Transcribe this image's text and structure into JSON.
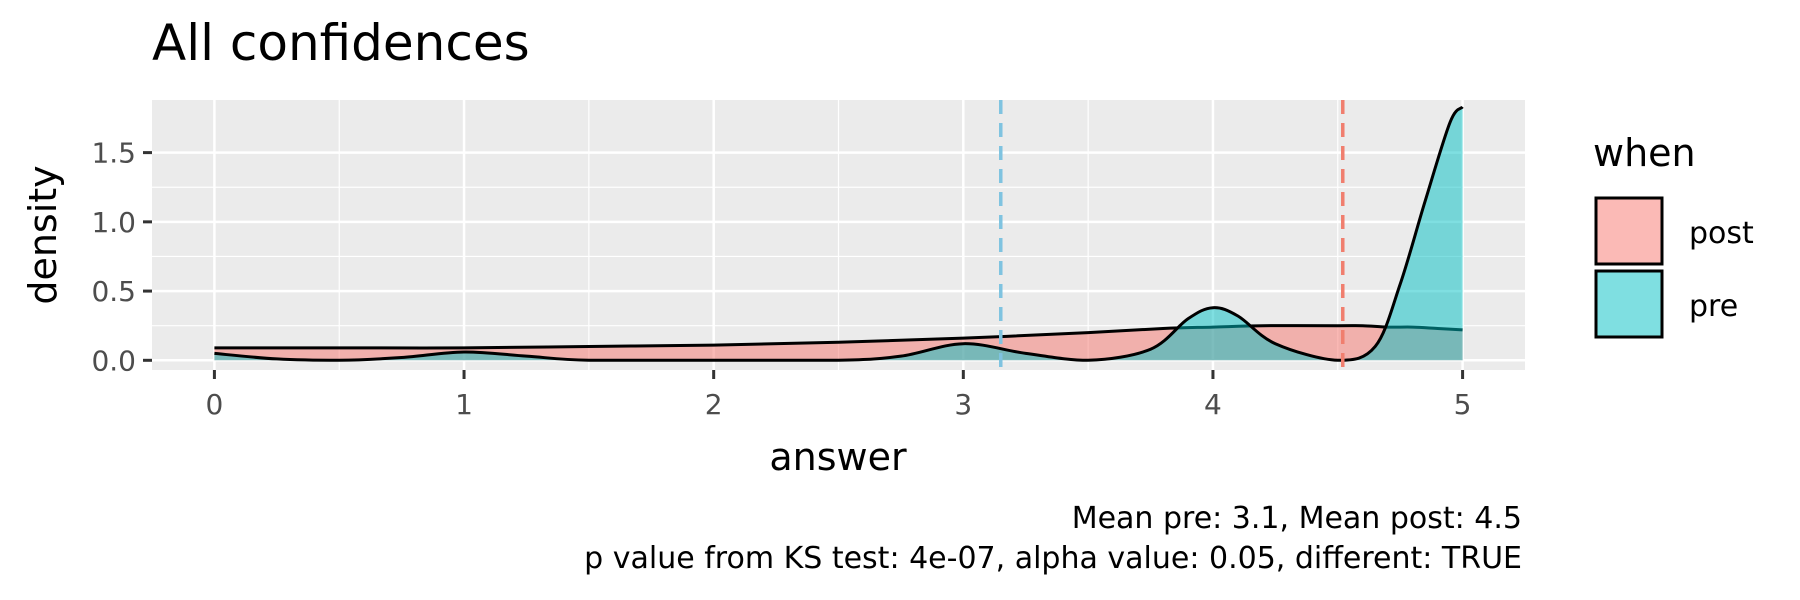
{
  "chart_data": {
    "type": "area",
    "title": "All confidences",
    "xlabel": "answer",
    "ylabel": "density",
    "xlim": [
      -0.25,
      5.25
    ],
    "ylim": [
      -0.07,
      1.88
    ],
    "x_ticks": [
      0,
      1,
      2,
      3,
      4,
      5
    ],
    "y_ticks": [
      0.0,
      0.5,
      1.0,
      1.5
    ],
    "x_tick_labels": [
      "0",
      "1",
      "2",
      "3",
      "4",
      "5"
    ],
    "y_tick_labels": [
      "0.0",
      "0.5",
      "1.0",
      "1.5"
    ],
    "legend_title": "when",
    "legend_position": "right",
    "series": [
      {
        "name": "post",
        "color": "#F8766D",
        "x": [
          0,
          0.5,
          1,
          1.5,
          2,
          2.5,
          3,
          3.5,
          3.8,
          4,
          4.2,
          4.5,
          4.6,
          4.7,
          4.8,
          4.9,
          5
        ],
        "values": [
          0.09,
          0.09,
          0.09,
          0.1,
          0.11,
          0.13,
          0.16,
          0.2,
          0.23,
          0.24,
          0.25,
          0.25,
          0.25,
          0.24,
          0.24,
          0.23,
          0.22
        ]
      },
      {
        "name": "pre",
        "color": "#00BFC4",
        "x": [
          0,
          0.25,
          0.5,
          0.75,
          1,
          1.25,
          1.5,
          2,
          2.5,
          2.75,
          3,
          3.25,
          3.5,
          3.75,
          3.9,
          4,
          4.1,
          4.25,
          4.5,
          4.65,
          4.75,
          4.85,
          4.95,
          5
        ],
        "values": [
          0.05,
          0.01,
          0.0,
          0.02,
          0.06,
          0.03,
          0.0,
          0.0,
          0.0,
          0.03,
          0.12,
          0.05,
          0.0,
          0.08,
          0.3,
          0.38,
          0.32,
          0.12,
          0.0,
          0.1,
          0.55,
          1.15,
          1.72,
          1.83
        ]
      }
    ],
    "vlines": [
      {
        "label": "Mean pre",
        "x": 3.15,
        "color": "#7FC3E0"
      },
      {
        "label": "Mean post",
        "x": 4.52,
        "color": "#F07E6E"
      }
    ],
    "caption_lines": [
      "Mean pre: 3.1, Mean post: 4.5",
      "p value from KS test: 4e-07, alpha value: 0.05, different: TRUE"
    ]
  }
}
